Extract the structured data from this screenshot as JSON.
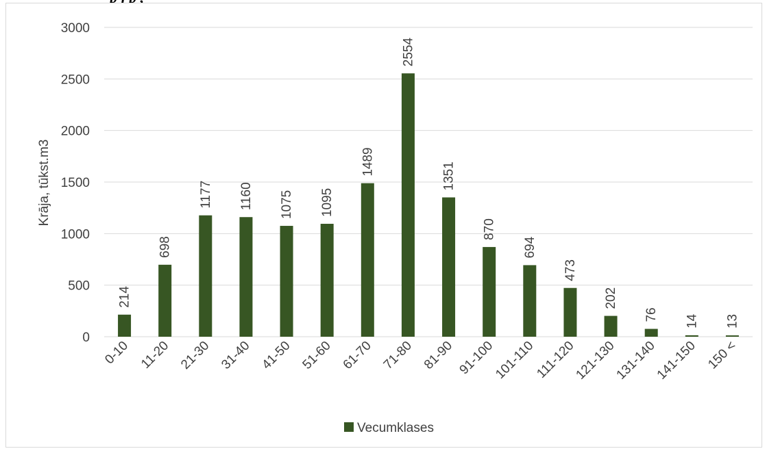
{
  "caption_fragment": "p                                              j                   p                           ,",
  "chart_data": {
    "type": "bar",
    "title": "",
    "xlabel": "",
    "ylabel": "Krāja, tūkst.m3",
    "ylim": [
      0,
      3000
    ],
    "yticks": [
      0,
      500,
      1000,
      1500,
      2000,
      2500,
      3000
    ],
    "grid": true,
    "legend_position": "bottom",
    "categories": [
      "0-10",
      "11-20",
      "21-30",
      "31-40",
      "41-50",
      "51-60",
      "61-70",
      "71-80",
      "81-90",
      "91-100",
      "101-110",
      "111-120",
      "121-130",
      "131-140",
      "141-150",
      "150 <"
    ],
    "series": [
      {
        "name": "Vecumklases",
        "color": "#375623",
        "values": [
          214,
          698,
          1177,
          1160,
          1075,
          1095,
          1489,
          2554,
          1351,
          870,
          694,
          473,
          202,
          76,
          14,
          13
        ]
      }
    ]
  }
}
